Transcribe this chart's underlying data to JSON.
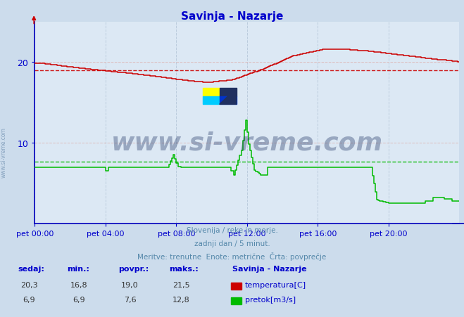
{
  "title": "Savinja - Nazarje",
  "title_color": "#0000cc",
  "bg_color": "#ccdcec",
  "plot_bg_color": "#dce8f4",
  "xlim": [
    0,
    288
  ],
  "ylim": [
    0,
    25
  ],
  "yticks": [
    10,
    20
  ],
  "xtick_labels": [
    "pet 00:00",
    "pet 04:00",
    "pet 08:00",
    "pet 12:00",
    "pet 16:00",
    "pet 20:00"
  ],
  "xtick_positions": [
    0,
    48,
    96,
    144,
    192,
    240
  ],
  "avg_temp": 19.0,
  "avg_flow": 7.6,
  "temp_color": "#cc0000",
  "flow_color": "#00bb00",
  "watermark_text": "www.si-vreme.com",
  "watermark_color": "#1a3060",
  "footer_line1": "Slovenija / reke in morje.",
  "footer_line2": "zadnji dan / 5 minut.",
  "footer_line3": "Meritve: trenutne  Enote: metrične  Črta: povprečje",
  "footer_color": "#5588aa",
  "legend_title": "Savinja - Nazarje",
  "legend_temp_label": "temperatura[C]",
  "legend_flow_label": "pretok[m3/s]",
  "stats_headers": [
    "sedaj:",
    "min.:",
    "povpr.:",
    "maks.:"
  ],
  "stats_temp": [
    "20,3",
    "16,8",
    "19,0",
    "21,5"
  ],
  "stats_flow": [
    "6,9",
    "6,9",
    "7,6",
    "12,8"
  ],
  "sidebar_text": "www.si-vreme.com"
}
